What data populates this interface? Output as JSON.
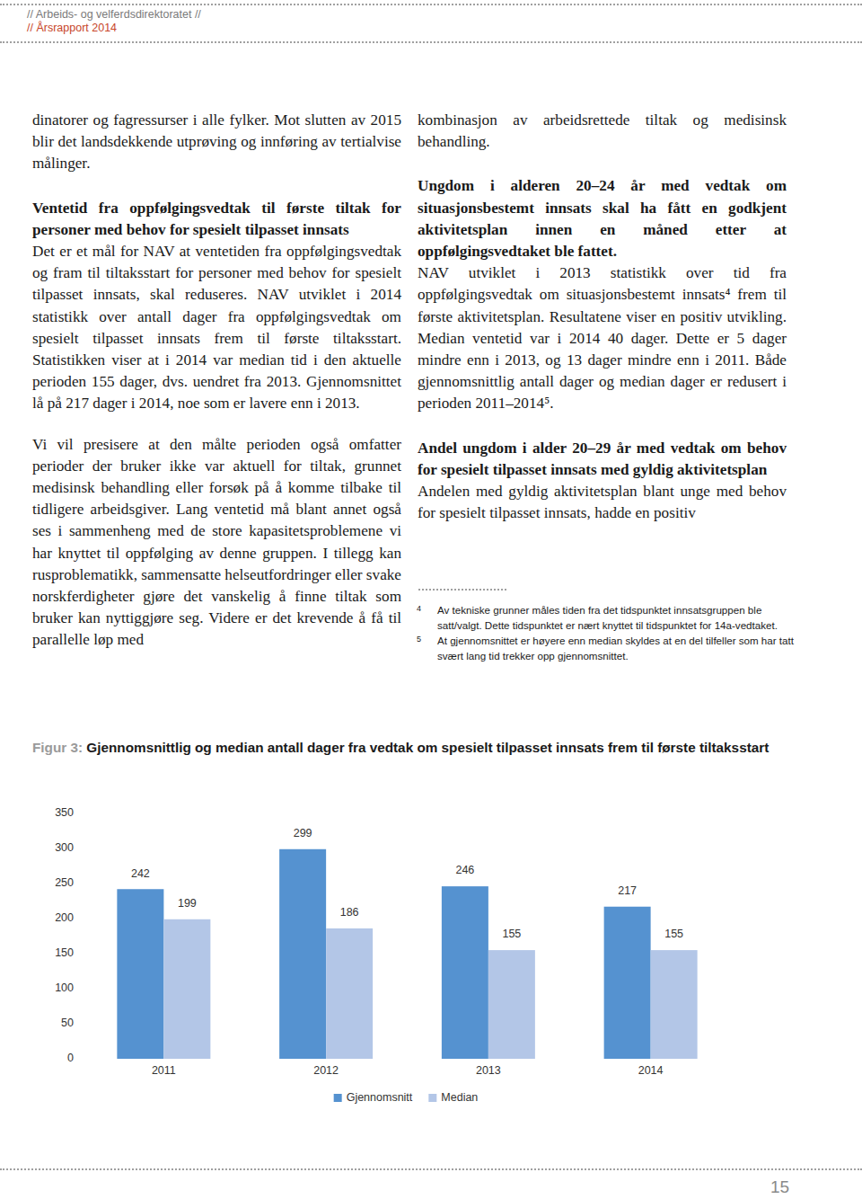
{
  "header": {
    "organization": "// Arbeids- og velferdsdirektoratet //",
    "report": "// Årsrapport 2014"
  },
  "left_column": [
    {
      "paragraph": "dinatorer og fagressurser i alle fylker. Mot slutten av 2015 blir det landsdekkende utprøving og innføring av tertialvise målinger."
    },
    {
      "heading": "Ventetid fra oppfølgingsvedtak til første tiltak for personer med behov for spesielt tilpasset innsats"
    },
    {
      "paragraph": "Det er et mål for NAV at ventetiden fra oppfølgingsvedtak og fram til tiltaksstart for personer med behov for spesielt tilpasset innsats, skal reduseres. NAV utviklet i 2014 statistikk over antall dager fra oppfølgingsvedtak om spesielt tilpasset innsats frem til første tiltaksstart. Statistikken viser at i 2014 var median tid i den aktuelle perioden 155 dager, dvs. uendret fra 2013. Gjennomsnittet lå på 217 dager i 2014, noe som er lavere enn i 2013."
    },
    {
      "paragraph": "Vi vil presisere at den målte perioden også omfatter perioder der bruker ikke var aktuell for tiltak, grunnet medisinsk behandling eller forsøk på å komme tilbake til tidligere arbeidsgiver. Lang ventetid må blant annet også ses i sammenheng med de store kapasitetsproblemene vi har knyttet til oppfølging av denne gruppen. I tillegg kan rusproblematikk, sammensatte helseutfordringer eller svake norskferdigheter gjøre det vanskelig å finne tiltak som bruker kan nyttiggjøre seg. Videre er det krevende å få til parallelle løp med"
    }
  ],
  "right_column": [
    {
      "paragraph": "kombinasjon av arbeidsrettede tiltak og medisinsk behandling."
    },
    {
      "heading": "Ungdom i alderen 20–24 år med vedtak om situasjonsbestemt innsats skal ha fått en godkjent aktivitetsplan innen en måned etter at oppfølgingsvedtaket ble fattet."
    },
    {
      "paragraph": "NAV utviklet i 2013 statistikk over tid fra oppfølgingsvedtak om situasjonsbestemt innsats⁴ frem til første aktivitetsplan. Resultatene viser en positiv utvikling. Median ventetid var i 2014 40 dager. Dette er 5 dager mindre enn i 2013, og 13 dager mindre enn i 2011. Både gjennomsnittlig antall dager og median dager er redusert i perioden 2011–2014⁵."
    },
    {
      "heading": "Andel ungdom i alder 20–29 år med vedtak om behov for spesielt tilpasset innsats med gyldig aktivitetsplan"
    },
    {
      "paragraph": "Andelen med gyldig aktivitetsplan blant unge med behov for spesielt tilpasset innsats, hadde en positiv"
    }
  ],
  "footnotes": [
    {
      "number": 4,
      "text": "Av tekniske grunner måles tiden fra det tidspunktet innsatsgruppen ble satt/valgt. Dette tidspunktet er nært knyttet til tidspunktet for 14a-vedtaket."
    },
    {
      "number": 5,
      "text": "At gjennomsnittet er høyere enn median skyldes at en del tilfeller som har tatt svært lang tid trekker opp gjennomsnittet."
    }
  ],
  "figure": {
    "label": "Figur 3:"
  },
  "chart_data": {
    "type": "bar",
    "title": "Gjennomsnittlig og median antall dager fra vedtak om spesielt tilpasset innsats frem til første tiltaksstart",
    "categories": [
      "2011",
      "2012",
      "2013",
      "2014"
    ],
    "series": [
      {
        "name": "Gjennomsnitt",
        "color": "#5592d0",
        "values": [
          242,
          299,
          246,
          217
        ]
      },
      {
        "name": "Median",
        "color": "#b3c6e7",
        "values": [
          199,
          186,
          155,
          155
        ]
      }
    ],
    "ylim": [
      0,
      350
    ],
    "yticks": [
      0,
      50,
      100,
      150,
      200,
      250,
      300,
      350
    ],
    "grid": false,
    "data_labels": true,
    "legend": "bottom"
  },
  "page_number": "15"
}
